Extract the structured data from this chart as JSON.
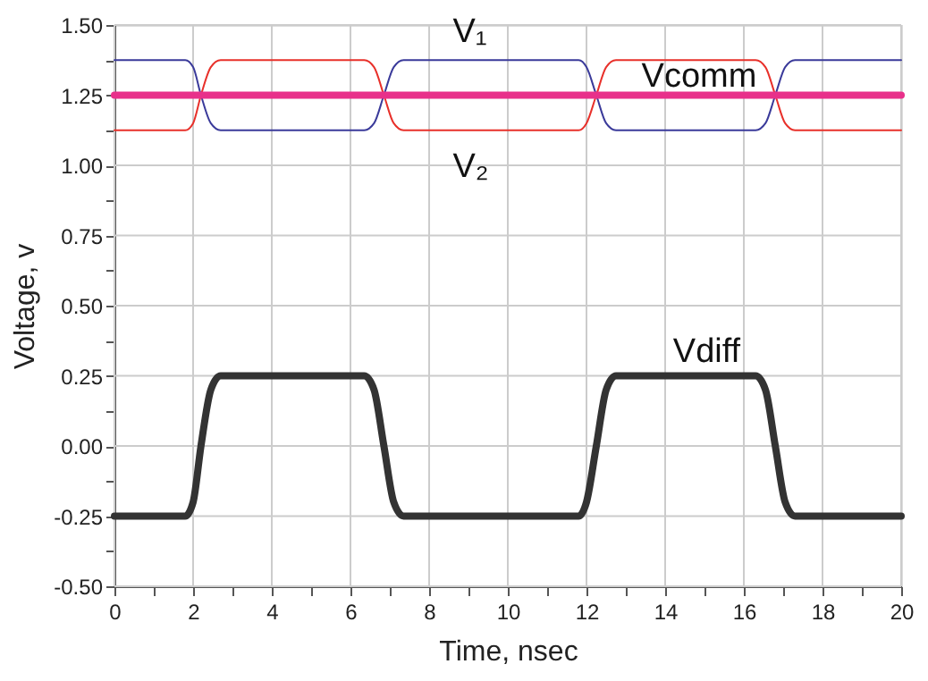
{
  "chart_data": {
    "type": "line",
    "xlabel": "Time, nsec",
    "ylabel": "Voltage, v",
    "x": [
      0,
      1.8,
      2.0,
      2.2,
      2.45,
      2.7,
      6.35,
      6.6,
      6.85,
      7.1,
      7.35,
      11.8,
      12.0,
      12.25,
      12.5,
      12.75,
      16.3,
      16.55,
      16.8,
      17.05,
      17.3,
      20
    ],
    "series": [
      {
        "name": "V₁",
        "color": "#3a3a9a",
        "values": [
          1.375,
          1.375,
          1.35,
          1.25,
          1.15,
          1.125,
          1.125,
          1.15,
          1.25,
          1.35,
          1.375,
          1.375,
          1.35,
          1.25,
          1.15,
          1.125,
          1.125,
          1.15,
          1.25,
          1.35,
          1.375,
          1.375
        ]
      },
      {
        "name": "V₂",
        "color": "#e8302a",
        "values": [
          1.125,
          1.125,
          1.15,
          1.25,
          1.35,
          1.375,
          1.375,
          1.35,
          1.25,
          1.15,
          1.125,
          1.125,
          1.15,
          1.25,
          1.35,
          1.375,
          1.375,
          1.35,
          1.25,
          1.15,
          1.125,
          1.125
        ]
      },
      {
        "name": "Vcomm",
        "color": "#e8308a",
        "x": [
          0,
          20
        ],
        "values": [
          1.25,
          1.25
        ]
      },
      {
        "name": "Vdiff",
        "color": "#333333",
        "values": [
          -0.25,
          -0.25,
          -0.2,
          0,
          0.2,
          0.25,
          0.25,
          0.2,
          0,
          -0.2,
          -0.25,
          -0.25,
          -0.2,
          0,
          0.2,
          0.25,
          0.25,
          0.2,
          0,
          -0.2,
          -0.25,
          -0.25
        ]
      }
    ],
    "xlim": [
      0,
      20
    ],
    "xticks": [
      0,
      {
        "value": 1,
        "label": null
      },
      2,
      {
        "value": 3,
        "label": null
      },
      4,
      {
        "value": 5,
        "label": null
      },
      6,
      {
        "value": 7,
        "label": null
      },
      8,
      {
        "value": 9,
        "label": null
      },
      10,
      {
        "value": 11,
        "label": null
      },
      12,
      {
        "value": 13,
        "label": null
      },
      14,
      {
        "value": 15,
        "label": null
      },
      16,
      {
        "value": 17,
        "label": null
      },
      18,
      {
        "value": 19,
        "label": null
      },
      20
    ],
    "ylim": [
      -0.5,
      1.5
    ],
    "yticks": [
      {
        "value": -0.5,
        "label": "-0.50"
      },
      {
        "value": -0.375,
        "label": null
      },
      {
        "value": -0.25,
        "label": "-0.25"
      },
      {
        "value": -0.125,
        "label": null
      },
      {
        "value": 0,
        "label": "0.00"
      },
      {
        "value": 0.125,
        "label": null
      },
      {
        "value": 0.25,
        "label": "0.25"
      },
      {
        "value": 0.375,
        "label": null
      },
      {
        "value": 0.5,
        "label": "0.50"
      },
      {
        "value": 0.625,
        "label": null
      },
      {
        "value": 0.75,
        "label": "0.75"
      },
      {
        "value": 0.875,
        "label": null
      },
      {
        "value": 1.0,
        "label": "1.00"
      },
      {
        "value": 1.125,
        "label": null
      },
      {
        "value": 1.25,
        "label": "1.25"
      },
      {
        "value": 1.375,
        "label": null
      },
      {
        "value": 1.5,
        "label": "1.50"
      }
    ],
    "grid": true,
    "marker": "none",
    "line_style": "solid"
  }
}
